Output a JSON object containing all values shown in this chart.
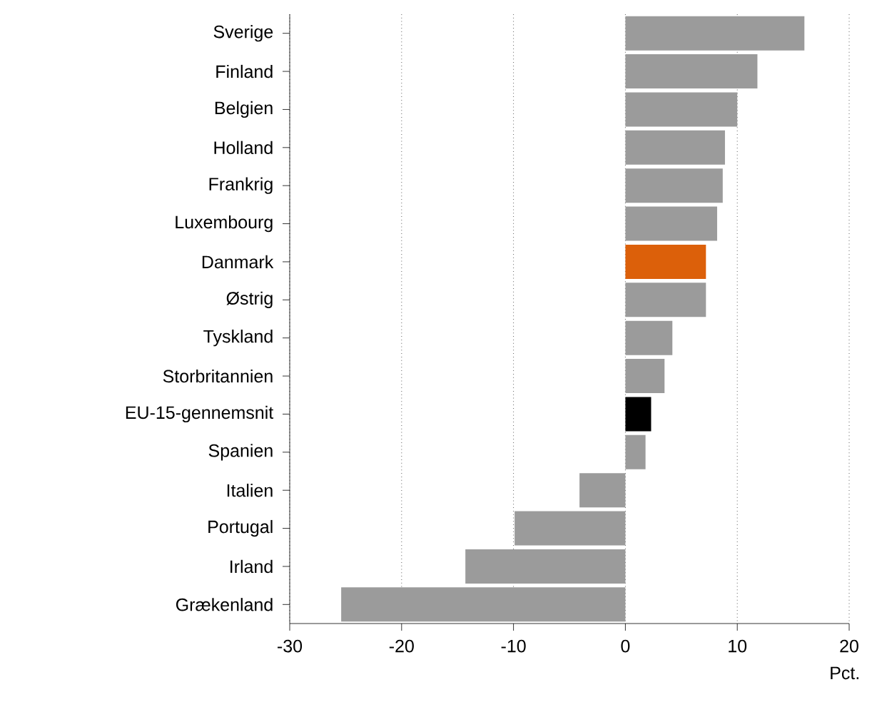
{
  "chart_data": {
    "type": "bar",
    "orientation": "horizontal",
    "xlabel": "Pct.",
    "categories": [
      "Sverige",
      "Finland",
      "Belgien",
      "Holland",
      "Frankrig",
      "Luxembourg",
      "Danmark",
      "Østrig",
      "Tyskland",
      "Storbritannien",
      "EU-15-gennemsnit",
      "Spanien",
      "Italien",
      "Portugal",
      "Irland",
      "Grækenland"
    ],
    "values": [
      16.0,
      11.8,
      10.0,
      8.9,
      8.7,
      8.2,
      7.2,
      7.2,
      4.2,
      3.5,
      2.3,
      1.8,
      -4.1,
      -9.9,
      -14.3,
      -25.4
    ],
    "colors": [
      "#9b9b9b",
      "#9b9b9b",
      "#9b9b9b",
      "#9b9b9b",
      "#9b9b9b",
      "#9b9b9b",
      "#dc600a",
      "#9b9b9b",
      "#9b9b9b",
      "#9b9b9b",
      "#000000",
      "#9b9b9b",
      "#9b9b9b",
      "#9b9b9b",
      "#9b9b9b",
      "#9b9b9b"
    ],
    "xlim": [
      -30,
      20
    ],
    "xticks": [
      -30,
      -20,
      -10,
      0,
      10,
      20
    ],
    "grid": "x"
  }
}
